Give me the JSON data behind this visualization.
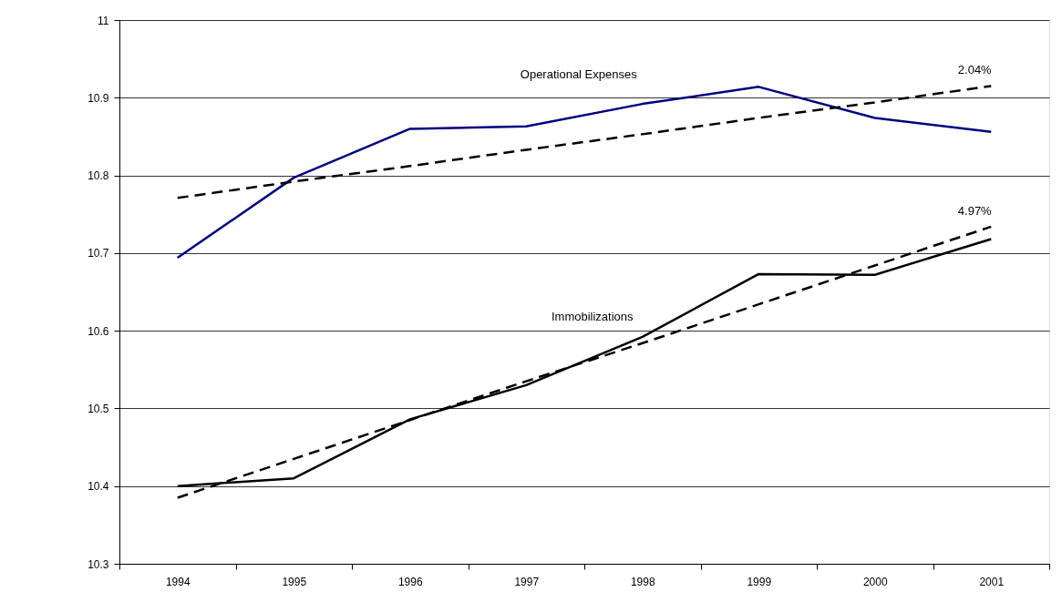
{
  "chart_data": {
    "type": "line",
    "categories": [
      "1994",
      "1995",
      "1996",
      "1997",
      "1998",
      "1999",
      "2000",
      "2001"
    ],
    "series": [
      {
        "name": "Operational Expenses",
        "color": "#000080",
        "values": [
          10.694,
          10.797,
          10.86,
          10.863,
          10.892,
          10.914,
          10.874,
          10.856
        ]
      },
      {
        "color": "#000000",
        "line_style": "dashed",
        "values": [
          10.771,
          10.792,
          10.812,
          10.833,
          10.853,
          10.874,
          10.894,
          10.915
        ]
      },
      {
        "name": "Immobilizations",
        "color": "#000000",
        "values": [
          10.4,
          10.41,
          10.486,
          10.53,
          10.592,
          10.673,
          10.672,
          10.718
        ]
      },
      {
        "color": "#000000",
        "line_style": "dashed",
        "values": [
          10.385,
          10.435,
          10.485,
          10.535,
          10.584,
          10.634,
          10.684,
          10.734
        ]
      }
    ],
    "annotations": [
      {
        "text": "2.04%",
        "x": "2001",
        "y": 10.915
      },
      {
        "text": "4.97%",
        "x": "2001",
        "y": 10.734
      }
    ],
    "ylim": [
      10.3,
      11
    ],
    "yticks": [
      10.3,
      10.4,
      10.5,
      10.6,
      10.7,
      10.8,
      10.9,
      11
    ],
    "grid": "y",
    "line_style": "solid",
    "marker": "none"
  }
}
